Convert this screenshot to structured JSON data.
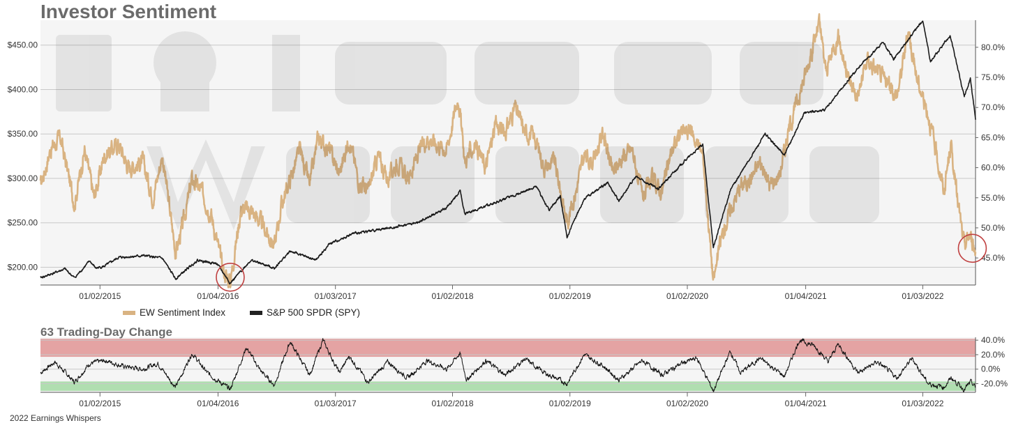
{
  "header": {
    "title": "Investor Sentiment",
    "subtitle": "63 Trading-Day Change",
    "credit": "2022 Earnings Whispers"
  },
  "legend": {
    "items": [
      {
        "label": "EW Sentiment Index",
        "color": "#d9b382"
      },
      {
        "label": "S&P 500 SPDR (SPY)",
        "color": "#222222"
      }
    ]
  },
  "colors": {
    "sentiment": "#d9b382",
    "spy": "#1a1a1a",
    "plot_bg": "#f5f5f5",
    "grid": "#c8c8c8",
    "band_red": "#e29a9a",
    "band_green": "#a8dba8",
    "circle": "#c04040"
  },
  "chart_data": [
    {
      "type": "line",
      "title": "Investor Sentiment",
      "x_tick_labels": [
        "01/02/2015",
        "01/04/2016",
        "01/03/2017",
        "01/02/2018",
        "01/02/2019",
        "01/02/2020",
        "01/04/2021",
        "01/03/2022"
      ],
      "left_axis": {
        "ticks": [
          "$200.00",
          "$250.00",
          "$300.00",
          "$350.00",
          "$400.00",
          "$450.00"
        ],
        "ylim": [
          180,
          478
        ]
      },
      "right_axis": {
        "ticks": [
          "45.0%",
          "50.0%",
          "55.0%",
          "60.0%",
          "65.0%",
          "70.0%",
          "75.0%",
          "80.0%"
        ],
        "ylim": [
          40.5,
          84.5
        ]
      },
      "series": [
        {
          "name": "EW Sentiment Index",
          "axis": "right",
          "points": [
            [
              "2014-07-01",
              57
            ],
            [
              "2014-08-01",
              63
            ],
            [
              "2014-09-01",
              65
            ],
            [
              "2014-10-15",
              54
            ],
            [
              "2014-11-15",
              63
            ],
            [
              "2014-12-15",
              55
            ],
            [
              "2015-01-15",
              62
            ],
            [
              "2015-03-01",
              64
            ],
            [
              "2015-04-01",
              60
            ],
            [
              "2015-05-15",
              61
            ],
            [
              "2015-06-15",
              55
            ],
            [
              "2015-07-15",
              62
            ],
            [
              "2015-08-25",
              46
            ],
            [
              "2015-09-15",
              50
            ],
            [
              "2015-10-15",
              58
            ],
            [
              "2015-11-15",
              56
            ],
            [
              "2015-12-15",
              52
            ],
            [
              "2016-01-20",
              43
            ],
            [
              "2016-02-11",
              41
            ],
            [
              "2016-03-15",
              53
            ],
            [
              "2016-04-15",
              53
            ],
            [
              "2016-05-15",
              51
            ],
            [
              "2016-06-27",
              47
            ],
            [
              "2016-07-20",
              54
            ],
            [
              "2016-08-15",
              58
            ],
            [
              "2016-09-15",
              63
            ],
            [
              "2016-10-15",
              57
            ],
            [
              "2016-11-10",
              65
            ],
            [
              "2016-12-15",
              63
            ],
            [
              "2017-01-15",
              59
            ],
            [
              "2017-02-15",
              65
            ],
            [
              "2017-03-15",
              58
            ],
            [
              "2017-04-15",
              56
            ],
            [
              "2017-05-15",
              62
            ],
            [
              "2017-06-15",
              58
            ],
            [
              "2017-07-15",
              61
            ],
            [
              "2017-08-15",
              58
            ],
            [
              "2017-09-15",
              62
            ],
            [
              "2017-10-15",
              65
            ],
            [
              "2017-11-15",
              64
            ],
            [
              "2017-12-15",
              63
            ],
            [
              "2018-01-20",
              72
            ],
            [
              "2018-02-09",
              61
            ],
            [
              "2018-03-15",
              64
            ],
            [
              "2018-04-15",
              60
            ],
            [
              "2018-05-15",
              67
            ],
            [
              "2018-06-15",
              66
            ],
            [
              "2018-07-15",
              70
            ],
            [
              "2018-08-15",
              66
            ],
            [
              "2018-09-15",
              65
            ],
            [
              "2018-10-15",
              60
            ],
            [
              "2018-11-15",
              61
            ],
            [
              "2018-12-24",
              51
            ],
            [
              "2019-01-20",
              56
            ],
            [
              "2019-02-15",
              62
            ],
            [
              "2019-03-15",
              61
            ],
            [
              "2019-04-15",
              66
            ],
            [
              "2019-05-15",
              59
            ],
            [
              "2019-06-15",
              62
            ],
            [
              "2019-07-15",
              63
            ],
            [
              "2019-08-15",
              55
            ],
            [
              "2019-09-15",
              58
            ],
            [
              "2019-10-15",
              56
            ],
            [
              "2019-11-15",
              63
            ],
            [
              "2019-12-15",
              66
            ],
            [
              "2020-01-15",
              66
            ],
            [
              "2020-02-20",
              62
            ],
            [
              "2020-03-23",
              41
            ],
            [
              "2020-04-15",
              48
            ],
            [
              "2020-05-15",
              53
            ],
            [
              "2020-06-15",
              57
            ],
            [
              "2020-07-15",
              58
            ],
            [
              "2020-08-15",
              61
            ],
            [
              "2020-09-15",
              57
            ],
            [
              "2020-10-15",
              59
            ],
            [
              "2020-11-15",
              67
            ],
            [
              "2020-12-15",
              72
            ],
            [
              "2021-01-15",
              78
            ],
            [
              "2021-02-15",
              84
            ],
            [
              "2021-03-08",
              76
            ],
            [
              "2021-04-15",
              82
            ],
            [
              "2021-05-15",
              75
            ],
            [
              "2021-06-15",
              72
            ],
            [
              "2021-07-15",
              78
            ],
            [
              "2021-08-15",
              76
            ],
            [
              "2021-09-15",
              74
            ],
            [
              "2021-10-15",
              72
            ],
            [
              "2021-11-20",
              83
            ],
            [
              "2021-12-15",
              75
            ],
            [
              "2022-01-20",
              69
            ],
            [
              "2022-02-15",
              62
            ],
            [
              "2022-03-10",
              56
            ],
            [
              "2022-03-31",
              64
            ],
            [
              "2022-04-20",
              55
            ],
            [
              "2022-05-12",
              47
            ],
            [
              "2022-05-28",
              49
            ],
            [
              "2022-06-16",
              46
            ]
          ]
        },
        {
          "name": "S&P 500 SPDR (SPY)",
          "axis": "left",
          "points": [
            [
              "2014-07-01",
              188
            ],
            [
              "2014-09-15",
              198
            ],
            [
              "2014-10-15",
              188
            ],
            [
              "2014-12-01",
              207
            ],
            [
              "2014-12-20",
              199
            ],
            [
              "2015-01-15",
              201
            ],
            [
              "2015-03-01",
              211
            ],
            [
              "2015-05-20",
              213
            ],
            [
              "2015-07-15",
              210
            ],
            [
              "2015-08-25",
              187
            ],
            [
              "2015-11-01",
              208
            ],
            [
              "2016-01-01",
              204
            ],
            [
              "2016-02-11",
              182
            ],
            [
              "2016-04-15",
              208
            ],
            [
              "2016-06-27",
              199
            ],
            [
              "2016-08-15",
              218
            ],
            [
              "2016-11-04",
              208
            ],
            [
              "2016-12-15",
              226
            ],
            [
              "2017-03-01",
              238
            ],
            [
              "2017-06-15",
              244
            ],
            [
              "2017-09-15",
              250
            ],
            [
              "2017-12-15",
              267
            ],
            [
              "2018-01-26",
              286
            ],
            [
              "2018-02-09",
              260
            ],
            [
              "2018-06-15",
              277
            ],
            [
              "2018-09-20",
              291
            ],
            [
              "2018-10-29",
              264
            ],
            [
              "2018-12-03",
              280
            ],
            [
              "2018-12-24",
              234
            ],
            [
              "2019-02-15",
              277
            ],
            [
              "2019-04-30",
              295
            ],
            [
              "2019-06-03",
              275
            ],
            [
              "2019-07-26",
              302
            ],
            [
              "2019-10-03",
              288
            ],
            [
              "2019-12-31",
              322
            ],
            [
              "2020-02-19",
              338
            ],
            [
              "2020-03-23",
              222
            ],
            [
              "2020-05-15",
              287
            ],
            [
              "2020-08-31",
              350
            ],
            [
              "2020-10-30",
              326
            ],
            [
              "2020-12-31",
              374
            ],
            [
              "2021-03-04",
              377
            ],
            [
              "2021-06-15",
              424
            ],
            [
              "2021-09-02",
              453
            ],
            [
              "2021-10-04",
              434
            ],
            [
              "2022-01-03",
              478
            ],
            [
              "2022-01-27",
              431
            ],
            [
              "2022-03-29",
              461
            ],
            [
              "2022-05-12",
              392
            ],
            [
              "2022-05-31",
              412
            ],
            [
              "2022-06-16",
              366
            ]
          ]
        }
      ]
    },
    {
      "type": "line",
      "title": "63 Trading-Day Change",
      "x_tick_labels": [
        "01/02/2015",
        "01/04/2016",
        "01/03/2017",
        "01/02/2018",
        "01/02/2019",
        "01/02/2020",
        "01/04/2021",
        "01/03/2022"
      ],
      "right_axis": {
        "ticks": [
          "-20.0%",
          "0.0%",
          "20.0%",
          "40.0%"
        ],
        "ylim": [
          -32,
          44
        ]
      },
      "bands": [
        {
          "from": 17,
          "to": 42,
          "color": "red"
        },
        {
          "from": -30,
          "to": -17,
          "color": "green"
        }
      ],
      "series": [
        {
          "name": "63 Trading-Day Change",
          "points": [
            [
              "2014-07-01",
              -5
            ],
            [
              "2014-08-15",
              10
            ],
            [
              "2014-10-15",
              -18
            ],
            [
              "2014-12-01",
              8
            ],
            [
              "2015-01-20",
              12
            ],
            [
              "2015-03-15",
              4
            ],
            [
              "2015-05-15",
              0
            ],
            [
              "2015-07-01",
              8
            ],
            [
              "2015-08-25",
              -25
            ],
            [
              "2015-10-15",
              22
            ],
            [
              "2015-12-01",
              -5
            ],
            [
              "2016-02-11",
              -28
            ],
            [
              "2016-04-01",
              30
            ],
            [
              "2016-05-15",
              -2
            ],
            [
              "2016-06-27",
              -22
            ],
            [
              "2016-08-15",
              38
            ],
            [
              "2016-10-15",
              -8
            ],
            [
              "2016-11-25",
              40
            ],
            [
              "2017-01-15",
              -5
            ],
            [
              "2017-02-15",
              18
            ],
            [
              "2017-04-15",
              -18
            ],
            [
              "2017-06-15",
              10
            ],
            [
              "2017-08-15",
              -12
            ],
            [
              "2017-10-15",
              12
            ],
            [
              "2017-12-15",
              0
            ],
            [
              "2018-01-25",
              22
            ],
            [
              "2018-02-15",
              -15
            ],
            [
              "2018-04-15",
              12
            ],
            [
              "2018-06-15",
              -8
            ],
            [
              "2018-08-15",
              14
            ],
            [
              "2018-10-15",
              -5
            ],
            [
              "2018-12-24",
              -20
            ],
            [
              "2019-02-15",
              20
            ],
            [
              "2019-04-15",
              5
            ],
            [
              "2019-06-03",
              -15
            ],
            [
              "2019-08-15",
              12
            ],
            [
              "2019-10-15",
              -8
            ],
            [
              "2019-12-15",
              8
            ],
            [
              "2020-02-01",
              15
            ],
            [
              "2020-03-23",
              -30
            ],
            [
              "2020-05-15",
              25
            ],
            [
              "2020-06-15",
              -5
            ],
            [
              "2020-08-15",
              15
            ],
            [
              "2020-10-30",
              -10
            ],
            [
              "2020-12-15",
              40
            ],
            [
              "2021-02-01",
              32
            ],
            [
              "2021-03-15",
              10
            ],
            [
              "2021-04-15",
              35
            ],
            [
              "2021-06-15",
              -5
            ],
            [
              "2021-08-15",
              10
            ],
            [
              "2021-10-15",
              -12
            ],
            [
              "2021-12-01",
              15
            ],
            [
              "2022-01-20",
              -20
            ],
            [
              "2022-03-10",
              -25
            ],
            [
              "2022-04-01",
              -12
            ],
            [
              "2022-05-12",
              -28
            ],
            [
              "2022-06-01",
              -18
            ],
            [
              "2022-06-16",
              -25
            ]
          ]
        }
      ]
    }
  ]
}
